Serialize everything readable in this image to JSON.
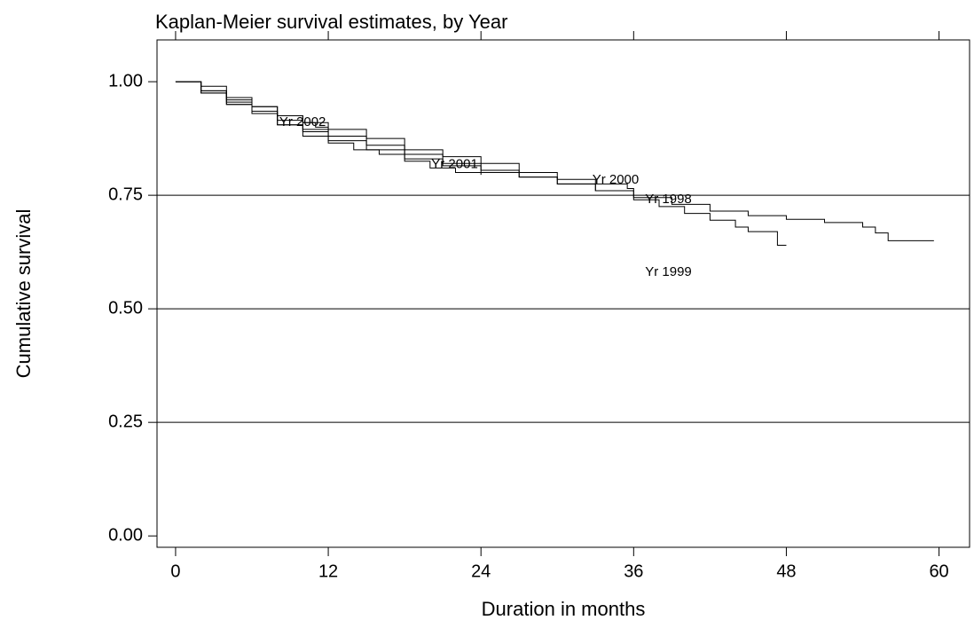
{
  "chart_data": {
    "type": "step",
    "title": "Kaplan-Meier survival estimates, by Year",
    "x_label": "Duration in months",
    "y_label": "Cumulative survival",
    "xlim": [
      -1.46,
      62.4
    ],
    "ylim": [
      -0.025,
      1.092
    ],
    "xticks": [
      0,
      12,
      24,
      36,
      48,
      60
    ],
    "yticks": [
      {
        "value": 0,
        "label": "0.00"
      },
      {
        "value": 0.25,
        "label": "0.25"
      },
      {
        "value": 0.5,
        "label": "0.50"
      },
      {
        "value": 0.75,
        "label": "0.75"
      },
      {
        "value": 1,
        "label": "1.00"
      }
    ],
    "ygrid": [
      0.25,
      0.5,
      0.75
    ],
    "color": "#000000",
    "series": [
      {
        "name": "Yr 1998",
        "label_at": [
          36.9,
          0.74
        ],
        "x": [
          0,
          2,
          4,
          6,
          8,
          10,
          12,
          15,
          18,
          21,
          24,
          27,
          30,
          33,
          36,
          39,
          42,
          45,
          48,
          51,
          54,
          55,
          56,
          59.6
        ],
        "values": [
          1,
          0.98,
          0.955,
          0.935,
          0.915,
          0.895,
          0.88,
          0.86,
          0.84,
          0.82,
          0.805,
          0.79,
          0.775,
          0.76,
          0.745,
          0.73,
          0.715,
          0.705,
          0.697,
          0.69,
          0.68,
          0.667,
          0.65,
          0.65
        ]
      },
      {
        "name": "Yr 1999",
        "label_at": [
          36.9,
          0.58
        ],
        "x": [
          0,
          2,
          4,
          6,
          8,
          10,
          12,
          15,
          18,
          21,
          24,
          27,
          30,
          33,
          36,
          38,
          40,
          42,
          44,
          45,
          47.3,
          48
        ],
        "values": [
          1,
          0.975,
          0.95,
          0.93,
          0.905,
          0.89,
          0.87,
          0.85,
          0.83,
          0.815,
          0.8,
          0.79,
          0.775,
          0.76,
          0.74,
          0.725,
          0.71,
          0.695,
          0.68,
          0.67,
          0.64,
          0.64
        ]
      },
      {
        "name": "Yr 2000",
        "label_at": [
          32.75,
          0.783
        ],
        "x": [
          0,
          2,
          4,
          6,
          8,
          10,
          12,
          15,
          18,
          21,
          24,
          27,
          30,
          33,
          35.5,
          36
        ],
        "values": [
          1,
          0.99,
          0.965,
          0.945,
          0.925,
          0.91,
          0.895,
          0.875,
          0.85,
          0.835,
          0.82,
          0.8,
          0.785,
          0.775,
          0.765,
          0.76
        ]
      },
      {
        "name": "Yr 2001",
        "label_at": [
          20.1,
          0.818
        ],
        "x": [
          0,
          2,
          4,
          6,
          8,
          10,
          12,
          14,
          16,
          18,
          20,
          22,
          24
        ],
        "values": [
          1,
          0.975,
          0.95,
          0.93,
          0.905,
          0.88,
          0.865,
          0.85,
          0.84,
          0.825,
          0.81,
          0.8,
          0.795
        ]
      },
      {
        "name": "Yr 2002",
        "label_at": [
          8.15,
          0.91
        ],
        "x": [
          0,
          2,
          4,
          6,
          8,
          10,
          11,
          12
        ],
        "values": [
          1,
          0.98,
          0.96,
          0.945,
          0.925,
          0.91,
          0.9,
          0.89
        ]
      }
    ]
  }
}
